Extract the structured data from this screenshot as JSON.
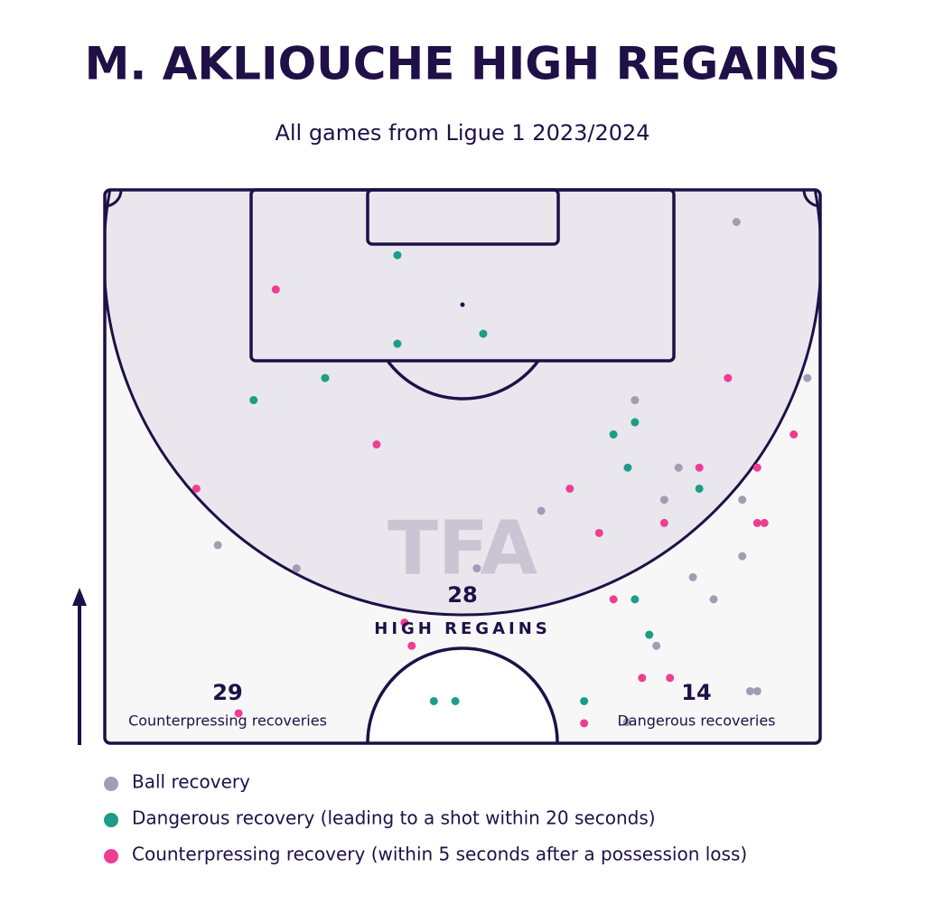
{
  "chart_data": {
    "type": "scatter",
    "title": "M. AKLIOUCHE HIGH REGAINS",
    "subtitle": "All games from Ligue 1 2023/2024",
    "watermark": "TFA",
    "xlim": [
      0,
      100
    ],
    "ylim": [
      50,
      100
    ],
    "stats": [
      {
        "value": 28,
        "label": "HIGH REGAINS"
      },
      {
        "value": 29,
        "label": "Counterpressing recoveries"
      },
      {
        "value": 14,
        "label": "Dangerous recoveries"
      }
    ],
    "series": [
      {
        "name": "Ball recovery",
        "color": "#a39cb3",
        "x": [
          88.3,
          98.2,
          74.1,
          80.2,
          78.2,
          89.1,
          61.0,
          15.8,
          26.8,
          52.0,
          89.1,
          82.2,
          85.1,
          77.1,
          90.2,
          91.2,
          73.0
        ],
        "y": [
          97.1,
          83.0,
          81.0,
          74.9,
          72.0,
          72.0,
          71.0,
          67.9,
          65.8,
          65.8,
          66.9,
          65.0,
          63.0,
          58.8,
          54.7,
          54.7,
          51.9
        ]
      },
      {
        "name": "Dangerous recovery (leading to a shot within 20 seconds)",
        "color": "#1d9c87",
        "x": [
          40.9,
          52.9,
          40.9,
          30.8,
          20.8,
          74.1,
          71.1,
          73.1,
          83.1,
          74.1,
          76.1,
          46.0,
          49.0,
          67.0
        ],
        "y": [
          94.1,
          87.0,
          86.1,
          83.0,
          81.0,
          79.0,
          77.9,
          74.9,
          73.0,
          63.0,
          59.8,
          53.8,
          53.8,
          53.8
        ]
      },
      {
        "name": "Counterpressing recovery (within 5 seconds after a possession loss)",
        "color": "#ee3e92",
        "x": [
          23.9,
          87.1,
          96.3,
          38.0,
          83.1,
          91.2,
          12.8,
          65.0,
          78.2,
          91.2,
          92.2,
          69.1,
          71.1,
          41.9,
          42.9,
          75.1,
          79.0,
          18.7,
          67.0
        ],
        "y": [
          91.0,
          83.0,
          77.9,
          77.0,
          74.9,
          74.9,
          73.0,
          73.0,
          69.9,
          69.9,
          69.9,
          69.0,
          63.0,
          60.9,
          58.8,
          55.9,
          55.9,
          52.7,
          51.8
        ]
      }
    ]
  }
}
